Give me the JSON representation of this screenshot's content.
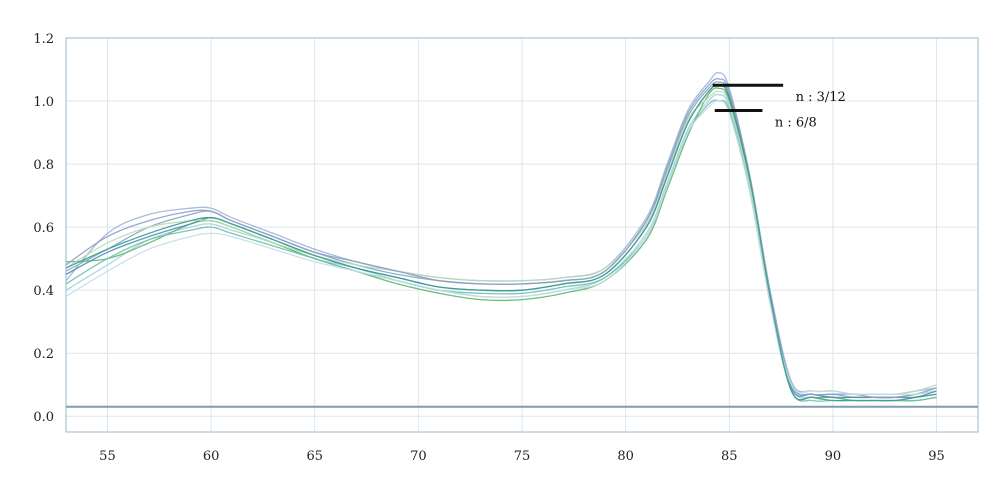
{
  "chart_data": {
    "type": "line",
    "title": "",
    "xlabel": "",
    "ylabel": "",
    "xlim": [
      53,
      97
    ],
    "ylim": [
      -0.05,
      1.2
    ],
    "x_ticks": [
      "55",
      "60",
      "65",
      "70",
      "75",
      "80",
      "85",
      "90",
      "95"
    ],
    "y_ticks": [
      "0.0",
      "0.2",
      "0.4",
      "0.6",
      "0.8",
      "1.0",
      "1.2"
    ],
    "grid": true,
    "baseline": {
      "y": 0.03
    },
    "x": [
      53,
      55,
      57,
      59,
      60,
      61,
      63,
      65,
      67,
      69,
      71,
      73,
      75,
      77,
      79,
      81,
      82,
      83,
      84,
      84.5,
      85,
      86,
      87,
      88,
      89,
      90,
      91,
      92,
      93,
      94,
      95
    ],
    "series": [
      {
        "color": "#7fa6c9",
        "values": [
          0.46,
          0.53,
          0.6,
          0.64,
          0.65,
          0.62,
          0.57,
          0.52,
          0.48,
          0.45,
          0.43,
          0.42,
          0.42,
          0.43,
          0.46,
          0.62,
          0.78,
          0.95,
          1.04,
          1.06,
          1.02,
          0.75,
          0.38,
          0.1,
          0.07,
          0.07,
          0.06,
          0.06,
          0.06,
          0.07,
          0.08
        ]
      },
      {
        "color": "#a8cfe0",
        "values": [
          0.4,
          0.48,
          0.56,
          0.6,
          0.61,
          0.59,
          0.55,
          0.5,
          0.47,
          0.43,
          0.4,
          0.38,
          0.38,
          0.4,
          0.44,
          0.58,
          0.74,
          0.91,
          1.0,
          1.02,
          0.98,
          0.72,
          0.36,
          0.09,
          0.06,
          0.06,
          0.05,
          0.05,
          0.05,
          0.06,
          0.07
        ]
      },
      {
        "color": "#5db86a",
        "values": [
          0.49,
          0.5,
          0.55,
          0.61,
          0.62,
          0.6,
          0.55,
          0.5,
          0.46,
          0.42,
          0.39,
          0.37,
          0.37,
          0.39,
          0.43,
          0.56,
          0.72,
          0.89,
          1.02,
          1.04,
          1.0,
          0.74,
          0.37,
          0.08,
          0.06,
          0.06,
          0.05,
          0.05,
          0.05,
          0.05,
          0.06
        ]
      },
      {
        "color": "#9fb5d6",
        "values": [
          0.43,
          0.58,
          0.64,
          0.66,
          0.66,
          0.63,
          0.58,
          0.53,
          0.49,
          0.46,
          0.44,
          0.43,
          0.43,
          0.44,
          0.47,
          0.63,
          0.8,
          0.97,
          1.06,
          1.09,
          1.04,
          0.76,
          0.39,
          0.11,
          0.08,
          0.08,
          0.07,
          0.07,
          0.07,
          0.08,
          0.09
        ]
      },
      {
        "color": "#4f8fb5",
        "values": [
          0.45,
          0.52,
          0.57,
          0.61,
          0.63,
          0.61,
          0.56,
          0.51,
          0.47,
          0.44,
          0.41,
          0.4,
          0.4,
          0.42,
          0.45,
          0.6,
          0.76,
          0.93,
          1.03,
          1.05,
          1.01,
          0.74,
          0.37,
          0.09,
          0.07,
          0.06,
          0.06,
          0.06,
          0.06,
          0.06,
          0.07
        ]
      },
      {
        "color": "#b9dcb4",
        "values": [
          0.47,
          0.55,
          0.6,
          0.62,
          0.62,
          0.6,
          0.55,
          0.51,
          0.48,
          0.46,
          0.44,
          0.43,
          0.43,
          0.44,
          0.47,
          0.61,
          0.77,
          0.94,
          1.01,
          1.03,
          0.99,
          0.73,
          0.36,
          0.1,
          0.08,
          0.08,
          0.07,
          0.07,
          0.07,
          0.08,
          0.1
        ]
      },
      {
        "color": "#6fbfb0",
        "values": [
          0.42,
          0.5,
          0.56,
          0.59,
          0.6,
          0.58,
          0.54,
          0.5,
          0.46,
          0.43,
          0.4,
          0.39,
          0.39,
          0.41,
          0.44,
          0.57,
          0.73,
          0.9,
          0.99,
          1.0,
          0.97,
          0.71,
          0.35,
          0.08,
          0.05,
          0.05,
          0.05,
          0.05,
          0.05,
          0.05,
          0.06
        ]
      },
      {
        "color": "#8e9fc4",
        "values": [
          0.48,
          0.57,
          0.62,
          0.65,
          0.65,
          0.62,
          0.57,
          0.52,
          0.49,
          0.46,
          0.43,
          0.42,
          0.42,
          0.43,
          0.46,
          0.62,
          0.79,
          0.96,
          1.05,
          1.07,
          1.03,
          0.76,
          0.38,
          0.1,
          0.07,
          0.07,
          0.07,
          0.06,
          0.06,
          0.07,
          0.09
        ]
      },
      {
        "color": "#c4dde8",
        "values": [
          0.38,
          0.46,
          0.53,
          0.57,
          0.58,
          0.57,
          0.53,
          0.49,
          0.46,
          0.43,
          0.4,
          0.38,
          0.38,
          0.4,
          0.43,
          0.57,
          0.73,
          0.9,
          0.98,
          1.0,
          0.96,
          0.71,
          0.35,
          0.1,
          0.08,
          0.08,
          0.07,
          0.07,
          0.07,
          0.07,
          0.08
        ]
      },
      {
        "color": "#3e9e8c",
        "values": [
          0.47,
          0.53,
          0.58,
          0.62,
          0.63,
          0.61,
          0.56,
          0.51,
          0.47,
          0.44,
          0.41,
          0.4,
          0.4,
          0.42,
          0.45,
          0.6,
          0.76,
          0.93,
          1.03,
          1.05,
          1.01,
          0.75,
          0.37,
          0.08,
          0.06,
          0.05,
          0.05,
          0.05,
          0.05,
          0.06,
          0.08
        ]
      }
    ],
    "annotations": [
      {
        "text": "n : 3/12",
        "x_start": 84.2,
        "x_end": 87.6,
        "y": 1.05,
        "label_x": 88.2,
        "label_y": 1.0
      },
      {
        "text": "n : 6/8",
        "x_start": 84.3,
        "x_end": 86.6,
        "y": 0.97,
        "label_x": 87.2,
        "label_y": 0.92
      }
    ]
  },
  "style": {
    "grid_color": "#dbe6ee",
    "frame_color": "#a9c3d3",
    "baseline_color": "#7f9cb2",
    "annotation_color": "#111111"
  }
}
